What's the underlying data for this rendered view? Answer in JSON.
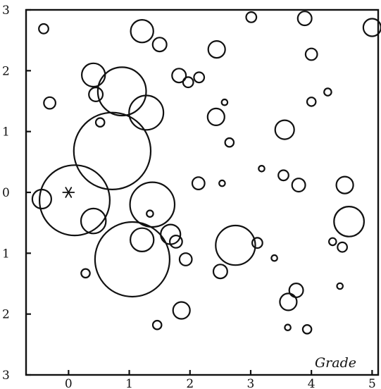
{
  "chart_data": {
    "type": "scatter",
    "title": "",
    "xlabel": "",
    "ylabel": "",
    "annotation": "Grade",
    "xlim": [
      -0.7,
      5.1
    ],
    "ylim": [
      -3,
      3
    ],
    "x_ticks": [
      0,
      1,
      2,
      3,
      4,
      5
    ],
    "y_ticks": [
      {
        "value": 3,
        "label": "3"
      },
      {
        "value": 2,
        "label": "2"
      },
      {
        "value": 1,
        "label": "1"
      },
      {
        "value": 0,
        "label": "0"
      },
      {
        "value": -1,
        "label": "1"
      },
      {
        "value": -2,
        "label": "2"
      },
      {
        "value": -3,
        "label": "3"
      }
    ],
    "grid": false,
    "marker_star": {
      "x": 0,
      "y": 0
    },
    "points": [
      {
        "x": -0.41,
        "y": 2.69,
        "size": 1.3
      },
      {
        "x": -0.31,
        "y": 1.47,
        "size": 1.6
      },
      {
        "x": -0.44,
        "y": -0.11,
        "size": 2.6
      },
      {
        "x": 0.1,
        "y": -0.13,
        "size": 9.6
      },
      {
        "x": 0.41,
        "y": 1.93,
        "size": 3.2
      },
      {
        "x": 0.45,
        "y": 1.61,
        "size": 1.9
      },
      {
        "x": 0.52,
        "y": 1.15,
        "size": 1.2
      },
      {
        "x": 0.72,
        "y": 0.68,
        "size": 10.5
      },
      {
        "x": 0.41,
        "y": -0.47,
        "size": 3.4
      },
      {
        "x": 0.28,
        "y": -1.33,
        "size": 1.2
      },
      {
        "x": 0.88,
        "y": 1.66,
        "size": 6.6
      },
      {
        "x": 1.28,
        "y": 1.31,
        "size": 4.7
      },
      {
        "x": 1.21,
        "y": 2.65,
        "size": 3.1
      },
      {
        "x": 1.5,
        "y": 2.43,
        "size": 1.9
      },
      {
        "x": 1.38,
        "y": -0.2,
        "size": 6.1
      },
      {
        "x": 1.34,
        "y": -0.35,
        "size": 0.9
      },
      {
        "x": 1.05,
        "y": -1.1,
        "size": 10.2
      },
      {
        "x": 1.21,
        "y": -0.78,
        "size": 3.2
      },
      {
        "x": 1.68,
        "y": -0.69,
        "size": 2.7
      },
      {
        "x": 1.77,
        "y": -0.81,
        "size": 1.7
      },
      {
        "x": 1.93,
        "y": -1.1,
        "size": 1.7
      },
      {
        "x": 1.86,
        "y": -1.94,
        "size": 2.3
      },
      {
        "x": 1.46,
        "y": -2.18,
        "size": 1.2
      },
      {
        "x": 1.82,
        "y": 1.92,
        "size": 1.9
      },
      {
        "x": 1.97,
        "y": 1.81,
        "size": 1.4
      },
      {
        "x": 2.15,
        "y": 1.89,
        "size": 1.4
      },
      {
        "x": 2.44,
        "y": 2.35,
        "size": 2.3
      },
      {
        "x": 2.43,
        "y": 1.24,
        "size": 2.3
      },
      {
        "x": 2.57,
        "y": 1.48,
        "size": 0.8
      },
      {
        "x": 2.65,
        "y": 0.82,
        "size": 1.2
      },
      {
        "x": 2.14,
        "y": 0.15,
        "size": 1.7
      },
      {
        "x": 2.53,
        "y": 0.15,
        "size": 0.8
      },
      {
        "x": 2.75,
        "y": -0.87,
        "size": 5.4
      },
      {
        "x": 2.5,
        "y": -1.3,
        "size": 1.9
      },
      {
        "x": 3.01,
        "y": 2.88,
        "size": 1.4
      },
      {
        "x": 3.56,
        "y": 1.03,
        "size": 2.6
      },
      {
        "x": 3.18,
        "y": 0.39,
        "size": 0.8
      },
      {
        "x": 3.54,
        "y": 0.28,
        "size": 1.4
      },
      {
        "x": 3.79,
        "y": 0.12,
        "size": 1.8
      },
      {
        "x": 3.11,
        "y": -0.83,
        "size": 1.4
      },
      {
        "x": 3.39,
        "y": -1.08,
        "size": 0.8
      },
      {
        "x": 3.75,
        "y": -1.61,
        "size": 1.9
      },
      {
        "x": 3.62,
        "y": -1.8,
        "size": 2.3
      },
      {
        "x": 3.61,
        "y": -2.22,
        "size": 0.8
      },
      {
        "x": 3.93,
        "y": -2.25,
        "size": 1.2
      },
      {
        "x": 3.89,
        "y": 2.86,
        "size": 1.9
      },
      {
        "x": 4.0,
        "y": 2.27,
        "size": 1.6
      },
      {
        "x": 4.0,
        "y": 1.49,
        "size": 1.2
      },
      {
        "x": 4.27,
        "y": 1.65,
        "size": 1.0
      },
      {
        "x": 4.55,
        "y": 0.12,
        "size": 2.3
      },
      {
        "x": 4.62,
        "y": -0.48,
        "size": 4.1
      },
      {
        "x": 4.35,
        "y": -0.81,
        "size": 1.0
      },
      {
        "x": 4.51,
        "y": -0.9,
        "size": 1.3
      },
      {
        "x": 4.47,
        "y": -1.54,
        "size": 0.8
      },
      {
        "x": 5.0,
        "y": 2.71,
        "size": 2.4
      }
    ]
  }
}
